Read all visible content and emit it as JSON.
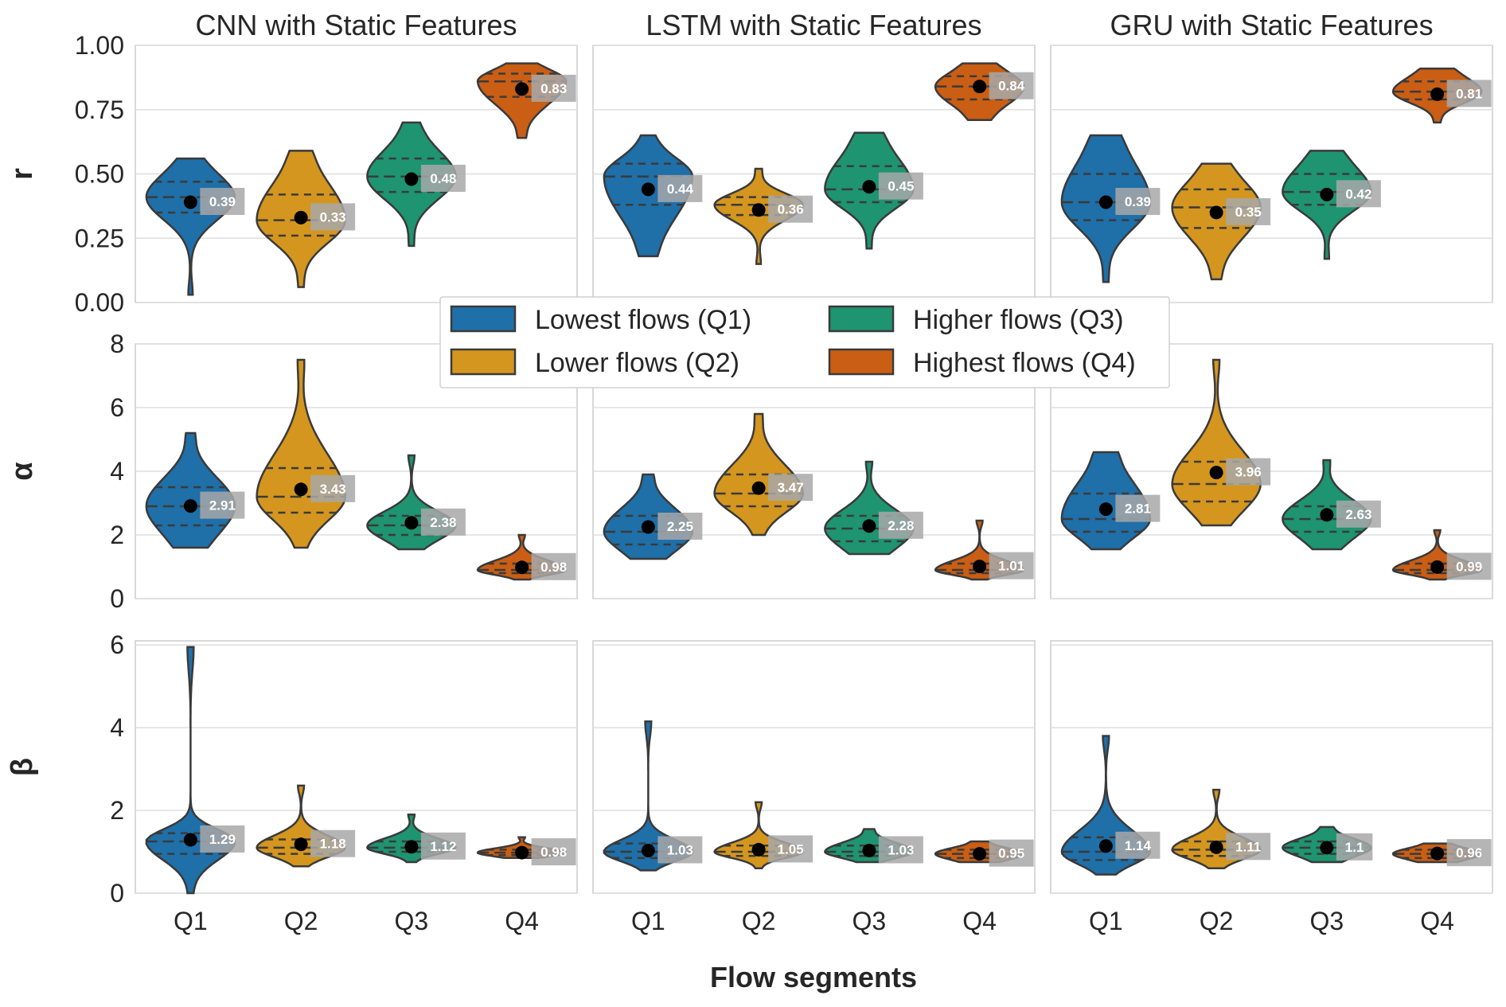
{
  "chart_data": {
    "type": "violin",
    "xlabel": "Flow segments",
    "categories": [
      "Q1",
      "Q2",
      "Q3",
      "Q4"
    ],
    "colors": [
      "#1f6fa8",
      "#d4961e",
      "#1e9470",
      "#c95e14"
    ],
    "legend": {
      "placement": "center",
      "entries": [
        "Lowest flows (Q1)",
        "Lower flows (Q2)",
        "Higher flows (Q3)",
        "Highest flows (Q4)"
      ]
    },
    "columns": [
      "CNN with Static Features",
      "LSTM with Static Features",
      "GRU with Static Features"
    ],
    "rows": [
      {
        "ylabel": "r",
        "ylim": [
          0,
          1
        ],
        "ticks": [
          "0.00",
          "0.25",
          "0.50",
          "0.75",
          "1.00"
        ],
        "tick_values": [
          0,
          0.25,
          0.5,
          0.75,
          1.0
        ],
        "panels": [
          [
            {
              "min": 0.03,
              "max": 0.56,
              "q1": 0.35,
              "median": 0.41,
              "q3": 0.47,
              "mean": 0.39,
              "label": "0.39"
            },
            {
              "min": 0.06,
              "max": 0.59,
              "q1": 0.26,
              "median": 0.32,
              "q3": 0.42,
              "mean": 0.33,
              "label": "0.33"
            },
            {
              "min": 0.22,
              "max": 0.7,
              "q1": 0.43,
              "median": 0.49,
              "q3": 0.56,
              "mean": 0.48,
              "label": "0.48"
            },
            {
              "min": 0.64,
              "max": 0.93,
              "q1": 0.8,
              "median": 0.86,
              "q3": 0.89,
              "mean": 0.83,
              "label": "0.83"
            }
          ],
          [
            {
              "min": 0.18,
              "max": 0.65,
              "q1": 0.38,
              "median": 0.49,
              "q3": 0.54,
              "mean": 0.44,
              "label": "0.44"
            },
            {
              "min": 0.15,
              "max": 0.52,
              "q1": 0.34,
              "median": 0.38,
              "q3": 0.41,
              "mean": 0.36,
              "label": "0.36"
            },
            {
              "min": 0.21,
              "max": 0.66,
              "q1": 0.39,
              "median": 0.44,
              "q3": 0.53,
              "mean": 0.45,
              "label": "0.45"
            },
            {
              "min": 0.71,
              "max": 0.93,
              "q1": 0.79,
              "median": 0.84,
              "q3": 0.88,
              "mean": 0.84,
              "label": "0.84"
            }
          ],
          [
            {
              "min": 0.08,
              "max": 0.65,
              "q1": 0.32,
              "median": 0.39,
              "q3": 0.5,
              "mean": 0.39,
              "label": "0.39"
            },
            {
              "min": 0.09,
              "max": 0.54,
              "q1": 0.29,
              "median": 0.37,
              "q3": 0.44,
              "mean": 0.35,
              "label": "0.35"
            },
            {
              "min": 0.17,
              "max": 0.59,
              "q1": 0.38,
              "median": 0.43,
              "q3": 0.5,
              "mean": 0.42,
              "label": "0.42"
            },
            {
              "min": 0.7,
              "max": 0.91,
              "q1": 0.79,
              "median": 0.82,
              "q3": 0.86,
              "mean": 0.81,
              "label": "0.81"
            }
          ]
        ]
      },
      {
        "ylabel": "α",
        "ylim": [
          0,
          8
        ],
        "ticks": [
          "0",
          "2",
          "4",
          "6",
          "8"
        ],
        "tick_values": [
          0,
          2,
          4,
          6,
          8
        ],
        "panels": [
          [
            {
              "min": 1.6,
              "max": 5.2,
              "q1": 2.3,
              "median": 2.9,
              "q3": 3.5,
              "mean": 2.91,
              "label": "2.91"
            },
            {
              "min": 1.6,
              "max": 7.5,
              "q1": 2.7,
              "median": 3.2,
              "q3": 4.1,
              "mean": 3.43,
              "label": "3.43"
            },
            {
              "min": 1.55,
              "max": 4.5,
              "q1": 2.0,
              "median": 2.3,
              "q3": 2.6,
              "mean": 2.38,
              "label": "2.38"
            },
            {
              "min": 0.6,
              "max": 2.0,
              "q1": 0.8,
              "median": 0.9,
              "q3": 1.1,
              "mean": 0.98,
              "label": "0.98"
            }
          ],
          [
            {
              "min": 1.25,
              "max": 3.9,
              "q1": 1.7,
              "median": 2.1,
              "q3": 2.6,
              "mean": 2.25,
              "label": "2.25"
            },
            {
              "min": 2.0,
              "max": 5.8,
              "q1": 2.9,
              "median": 3.3,
              "q3": 3.9,
              "mean": 3.47,
              "label": "3.47"
            },
            {
              "min": 1.4,
              "max": 4.3,
              "q1": 1.8,
              "median": 2.2,
              "q3": 2.6,
              "mean": 2.28,
              "label": "2.28"
            },
            {
              "min": 0.6,
              "max": 2.45,
              "q1": 0.8,
              "median": 0.9,
              "q3": 1.1,
              "mean": 1.01,
              "label": "1.01"
            }
          ],
          [
            {
              "min": 1.55,
              "max": 4.6,
              "q1": 2.1,
              "median": 2.5,
              "q3": 3.3,
              "mean": 2.81,
              "label": "2.81"
            },
            {
              "min": 2.3,
              "max": 7.5,
              "q1": 3.05,
              "median": 3.6,
              "q3": 4.3,
              "mean": 3.96,
              "label": "3.96"
            },
            {
              "min": 1.55,
              "max": 4.35,
              "q1": 2.1,
              "median": 2.5,
              "q3": 2.9,
              "mean": 2.63,
              "label": "2.63"
            },
            {
              "min": 0.6,
              "max": 2.15,
              "q1": 0.8,
              "median": 0.9,
              "q3": 1.1,
              "mean": 0.99,
              "label": "0.99"
            }
          ]
        ]
      },
      {
        "ylabel": "β",
        "ylim": [
          0,
          6.1
        ],
        "ticks": [
          "0",
          "2",
          "4",
          "6"
        ],
        "tick_values": [
          0,
          2,
          4,
          6
        ],
        "panels": [
          [
            {
              "min": 0.0,
              "max": 5.95,
              "q1": 0.95,
              "median": 1.25,
              "q3": 1.45,
              "mean": 1.29,
              "label": "1.29"
            },
            {
              "min": 0.65,
              "max": 2.6,
              "q1": 0.95,
              "median": 1.1,
              "q3": 1.3,
              "mean": 1.18,
              "label": "1.18"
            },
            {
              "min": 0.75,
              "max": 1.9,
              "q1": 1.0,
              "median": 1.1,
              "q3": 1.25,
              "mean": 1.12,
              "label": "1.12"
            },
            {
              "min": 0.85,
              "max": 1.35,
              "q1": 0.92,
              "median": 0.98,
              "q3": 1.05,
              "mean": 0.98,
              "label": "0.98"
            }
          ],
          [
            {
              "min": 0.55,
              "max": 4.15,
              "q1": 0.85,
              "median": 1.0,
              "q3": 1.2,
              "mean": 1.03,
              "label": "1.03"
            },
            {
              "min": 0.6,
              "max": 2.2,
              "q1": 0.9,
              "median": 1.0,
              "q3": 1.15,
              "mean": 1.05,
              "label": "1.05"
            },
            {
              "min": 0.75,
              "max": 1.55,
              "q1": 0.9,
              "median": 1.0,
              "q3": 1.15,
              "mean": 1.03,
              "label": "1.03"
            },
            {
              "min": 0.75,
              "max": 1.25,
              "q1": 0.85,
              "median": 0.95,
              "q3": 1.05,
              "mean": 0.95,
              "label": "0.95"
            }
          ],
          [
            {
              "min": 0.45,
              "max": 3.8,
              "q1": 0.8,
              "median": 1.0,
              "q3": 1.35,
              "mean": 1.14,
              "label": "1.14"
            },
            {
              "min": 0.6,
              "max": 2.5,
              "q1": 0.9,
              "median": 1.05,
              "q3": 1.25,
              "mean": 1.11,
              "label": "1.11"
            },
            {
              "min": 0.75,
              "max": 1.6,
              "q1": 0.95,
              "median": 1.1,
              "q3": 1.25,
              "mean": 1.1,
              "label": "1.1"
            },
            {
              "min": 0.75,
              "max": 1.2,
              "q1": 0.85,
              "median": 0.95,
              "q3": 1.05,
              "mean": 0.96,
              "label": "0.96"
            }
          ]
        ]
      }
    ]
  }
}
